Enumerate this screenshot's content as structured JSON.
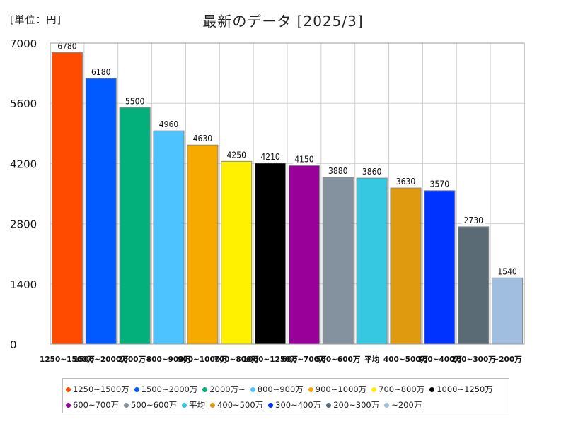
{
  "header": {
    "unit_label": "[単位：円]",
    "title": "最新のデータ [2025/3]"
  },
  "chart_data": {
    "type": "bar",
    "title": "最新のデータ [2025/3]",
    "unit": "[単位：円]",
    "ylim": [
      0,
      7000
    ],
    "yticks": [
      0,
      1400,
      2800,
      4200,
      5600,
      7000
    ],
    "grid": true,
    "legend_position": "bottom",
    "categories": [
      "1250~1500万",
      "1500~2000万",
      "2000万~",
      "800~900万",
      "900~1000万",
      "700~800万",
      "1000~1250万",
      "600~700万",
      "500~600万",
      "平均",
      "400~500万",
      "300~400万",
      "200~300万",
      "~200万"
    ],
    "values": [
      6780,
      6180,
      5500,
      4960,
      4630,
      4250,
      4210,
      4150,
      3880,
      3860,
      3630,
      3570,
      2730,
      1540
    ],
    "colors": [
      "#ff4b00",
      "#005aff",
      "#03af7a",
      "#4dc4ff",
      "#f6aa00",
      "#fff100",
      "#000000",
      "#990099",
      "#84919e",
      "#36c8e0",
      "#e09a10",
      "#0033ff",
      "#5a6b75",
      "#a0bfe0"
    ]
  }
}
